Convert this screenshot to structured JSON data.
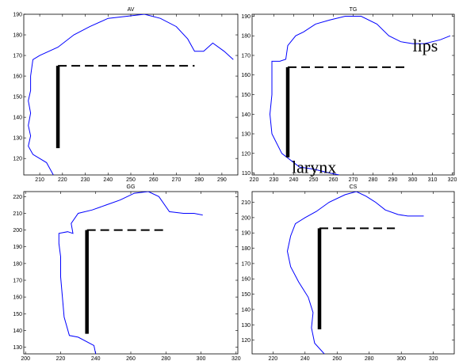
{
  "chart_data": [
    {
      "type": "line",
      "title": "AV",
      "xlim": [
        203,
        297
      ],
      "ylim": [
        112,
        190
      ],
      "xticks": [
        210,
        220,
        230,
        240,
        250,
        260,
        270,
        280,
        290
      ],
      "yticks": [
        120,
        130,
        140,
        150,
        160,
        170,
        180,
        190
      ],
      "series": [
        {
          "values_xy": [
            [
              216,
              112
            ],
            [
              213,
              118
            ],
            [
              207,
              122
            ],
            [
              205,
              126
            ],
            [
              206,
              131
            ],
            [
              205,
              136
            ],
            [
              206,
              142
            ],
            [
              205,
              148
            ],
            [
              206,
              153
            ],
            [
              206,
              160
            ],
            [
              207,
              168
            ],
            [
              210,
              170
            ],
            [
              218,
              174
            ],
            [
              225,
              180
            ],
            [
              232,
              184
            ],
            [
              240,
              188
            ],
            [
              248,
              189
            ],
            [
              256,
              190
            ],
            [
              263,
              188
            ],
            [
              270,
              184
            ],
            [
              275,
              178
            ],
            [
              278,
              172
            ],
            [
              282,
              172
            ],
            [
              286,
              176
            ],
            [
              291,
              172
            ],
            [
              295,
              168
            ]
          ]
        }
      ],
      "lips": {
        "x": [
          218,
          278
        ],
        "y": 165
      },
      "larynx": {
        "x": 218,
        "y": [
          125,
          165
        ]
      },
      "annotations": []
    },
    {
      "type": "line",
      "title": "TG",
      "xlim": [
        219,
        321
      ],
      "ylim": [
        109,
        191
      ],
      "xticks": [
        220,
        230,
        240,
        250,
        260,
        270,
        280,
        290,
        300,
        310,
        320
      ],
      "yticks": [
        110,
        120,
        130,
        140,
        150,
        160,
        170,
        180,
        190
      ],
      "series": [
        {
          "values_xy": [
            [
              263,
              109
            ],
            [
              258,
              110
            ],
            [
              250,
              112
            ],
            [
              243,
              113
            ],
            [
              234,
              120
            ],
            [
              229,
              130
            ],
            [
              228,
              140
            ],
            [
              229,
              150
            ],
            [
              229,
              160
            ],
            [
              229,
              167
            ],
            [
              233,
              167
            ],
            [
              236,
              168
            ],
            [
              237,
              175
            ],
            [
              241,
              180
            ],
            [
              245,
              182
            ],
            [
              251,
              186
            ],
            [
              258,
              188
            ],
            [
              266,
              190
            ],
            [
              274,
              190
            ],
            [
              282,
              186
            ],
            [
              288,
              180
            ],
            [
              294,
              177
            ],
            [
              300,
              176
            ],
            [
              306,
              176
            ],
            [
              310,
              177
            ],
            [
              314,
              178
            ],
            [
              319,
              180
            ]
          ]
        }
      ],
      "lips": {
        "x": [
          237,
          298
        ],
        "y": 164
      },
      "larynx": {
        "x": 237,
        "y": [
          118,
          164
        ]
      },
      "annotations": [
        {
          "text": "lips",
          "x": 300,
          "y": 172
        },
        {
          "text": "larynx",
          "x": 239,
          "y": 110
        }
      ]
    },
    {
      "type": "line",
      "title": "GG",
      "xlim": [
        199,
        321
      ],
      "ylim": [
        126,
        223
      ],
      "xticks": [
        200,
        220,
        240,
        260,
        280,
        300,
        320
      ],
      "yticks": [
        130,
        140,
        150,
        160,
        170,
        180,
        190,
        200,
        210,
        220
      ],
      "series": [
        {
          "values_xy": [
            [
              240,
              126
            ],
            [
              239,
              131
            ],
            [
              230,
              136
            ],
            [
              225,
              137
            ],
            [
              222,
              148
            ],
            [
              221,
              160
            ],
            [
              220,
              172
            ],
            [
              220,
              184
            ],
            [
              219,
              192
            ],
            [
              219,
              198
            ],
            [
              224,
              199
            ],
            [
              227,
              198
            ],
            [
              226,
              204
            ],
            [
              230,
              210
            ],
            [
              238,
              212
            ],
            [
              246,
              215
            ],
            [
              254,
              218
            ],
            [
              262,
              222
            ],
            [
              270,
              223
            ],
            [
              276,
              220
            ],
            [
              282,
              211
            ],
            [
              290,
              210
            ],
            [
              296,
              210
            ],
            [
              301,
              209
            ]
          ]
        }
      ],
      "lips": {
        "x": [
          235,
          281
        ],
        "y": 200
      },
      "larynx": {
        "x": 235,
        "y": [
          138,
          200
        ]
      },
      "annotations": []
    },
    {
      "type": "line",
      "title": "CS",
      "xlim": [
        207,
        333
      ],
      "ylim": [
        111,
        217
      ],
      "xticks": [
        220,
        240,
        260,
        280,
        300,
        320
      ],
      "yticks": [
        120,
        130,
        140,
        150,
        160,
        170,
        180,
        190,
        200,
        210
      ],
      "series": [
        {
          "values_xy": [
            [
              252,
              111
            ],
            [
              246,
              118
            ],
            [
              244,
              128
            ],
            [
              245,
              138
            ],
            [
              242,
              148
            ],
            [
              236,
              158
            ],
            [
              231,
              168
            ],
            [
              229,
              178
            ],
            [
              231,
              188
            ],
            [
              234,
              196
            ],
            [
              240,
              200
            ],
            [
              247,
              204
            ],
            [
              255,
              210
            ],
            [
              265,
              215
            ],
            [
              272,
              217
            ],
            [
              278,
              214
            ],
            [
              284,
              210
            ],
            [
              290,
              205
            ],
            [
              298,
              202
            ],
            [
              304,
              201
            ],
            [
              314,
              201
            ]
          ]
        }
      ],
      "lips": {
        "x": [
          249,
          296
        ],
        "y": 193
      },
      "larynx": {
        "x": 249,
        "y": [
          127,
          193
        ]
      },
      "annotations": []
    }
  ]
}
